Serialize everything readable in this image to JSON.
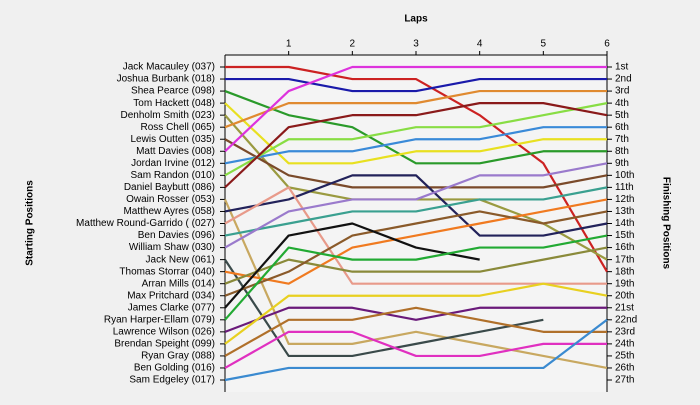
{
  "chart_data": {
    "type": "bump",
    "title": "Laps",
    "y_label": "Starting Positions",
    "y2_label": "Finishing Positions",
    "x": [
      0,
      1,
      2,
      3,
      4,
      5,
      6
    ],
    "xlim": [
      0,
      6
    ],
    "xticks": [
      1,
      2,
      3,
      4,
      5,
      6
    ],
    "ylim": [
      1,
      27
    ],
    "yticks": [
      {
        "value": 1,
        "label": "1st"
      },
      {
        "value": 2,
        "label": "2nd"
      },
      {
        "value": 3,
        "label": "3rd"
      },
      {
        "value": 4,
        "label": "4th"
      },
      {
        "value": 5,
        "label": "5th"
      },
      {
        "value": 6,
        "label": "6th"
      },
      {
        "value": 7,
        "label": "7th"
      },
      {
        "value": 8,
        "label": "8th"
      },
      {
        "value": 9,
        "label": "9th"
      },
      {
        "value": 10,
        "label": "10th"
      },
      {
        "value": 11,
        "label": "11th"
      },
      {
        "value": 12,
        "label": "12th"
      },
      {
        "value": 13,
        "label": "13th"
      },
      {
        "value": 14,
        "label": "14th"
      },
      {
        "value": 15,
        "label": "15th"
      },
      {
        "value": 16,
        "label": "16th"
      },
      {
        "value": 17,
        "label": "17th"
      },
      {
        "value": 18,
        "label": "18th"
      },
      {
        "value": 19,
        "label": "19th"
      },
      {
        "value": 20,
        "label": "20th"
      },
      {
        "value": 21,
        "label": "21st"
      },
      {
        "value": 22,
        "label": "22nd"
      },
      {
        "value": 23,
        "label": "23rd"
      },
      {
        "value": 24,
        "label": "24th"
      },
      {
        "value": 25,
        "label": "25th"
      },
      {
        "value": 26,
        "label": "26th"
      },
      {
        "value": 27,
        "label": "27th"
      }
    ],
    "series": [
      {
        "name": "Jack Macauley (037)",
        "color": "#cc2222",
        "values": [
          1,
          1,
          2,
          2,
          5,
          9,
          18
        ]
      },
      {
        "name": "Joshua Burbank (018)",
        "color": "#1a1aaa",
        "values": [
          2,
          2,
          3,
          3,
          2,
          2,
          2
        ]
      },
      {
        "name": "Shea Pearce (098)",
        "color": "#2a9a2a",
        "values": [
          3,
          5,
          6,
          9,
          9,
          8,
          8
        ]
      },
      {
        "name": "Tom Hackett (048)",
        "color": "#e8e020",
        "values": [
          4,
          9,
          9,
          8,
          8,
          7,
          7
        ]
      },
      {
        "name": "Denholm Smith (023)",
        "color": "#9a9a40",
        "values": [
          5,
          11,
          12,
          12,
          12,
          14,
          17
        ]
      },
      {
        "name": "Ross Chell (065)",
        "color": "#e08a30",
        "values": [
          6,
          4,
          4,
          4,
          3,
          3,
          3
        ]
      },
      {
        "name": "Lewis Outten (035)",
        "color": "#7a4a2a",
        "values": [
          7,
          10,
          11,
          11,
          11,
          11,
          10
        ]
      },
      {
        "name": "Matt Davies (008)",
        "color": "#dd33dd",
        "values": [
          8,
          3,
          1,
          1,
          1,
          1,
          1
        ]
      },
      {
        "name": "Jordan Irvine (012)",
        "color": "#3a8ad8",
        "values": [
          9,
          8,
          8,
          7,
          7,
          6,
          6
        ]
      },
      {
        "name": "Sam Randon (010)",
        "color": "#88dd44",
        "values": [
          10,
          7,
          7,
          6,
          6,
          5,
          4
        ]
      },
      {
        "name": "Daniel Baybutt (086)",
        "color": "#8a1a1a",
        "values": [
          11,
          6,
          5,
          5,
          4,
          4,
          5
        ]
      },
      {
        "name": "Owain Rosser (053)",
        "color": "#c8a860",
        "values": [
          12,
          24,
          24,
          23,
          24,
          25,
          26
        ]
      },
      {
        "name": "Matthew Ayres (058)",
        "color": "#22225a",
        "values": [
          13,
          12,
          10,
          10,
          15,
          15,
          14
        ]
      },
      {
        "name": "Matthew Round-Garrido ( (027)",
        "color": "#e89a8a",
        "values": [
          14,
          11,
          19,
          19,
          19,
          19,
          19
        ]
      },
      {
        "name": "Ben Davies (096)",
        "color": "#3aa090",
        "values": [
          15,
          14,
          13,
          13,
          12,
          12,
          11
        ]
      },
      {
        "name": "William Shaw (030)",
        "color": "#9a7acc",
        "values": [
          16,
          13,
          12,
          12,
          10,
          10,
          9
        ]
      },
      {
        "name": "Jack New (061)",
        "color": "#3a4a4a",
        "values": [
          17,
          25,
          25,
          24,
          23,
          22,
          null
        ]
      },
      {
        "name": "Thomas Storrar (040)",
        "color": "#f07a20",
        "values": [
          18,
          19,
          16,
          15,
          14,
          13,
          12
        ]
      },
      {
        "name": "Arran Mills (014)",
        "color": "#8a8a3a",
        "values": [
          19,
          17,
          18,
          18,
          18,
          17,
          16
        ]
      },
      {
        "name": "Max Pritchard (034)",
        "color": "#8a5a2a",
        "values": [
          20,
          18,
          15,
          14,
          13,
          14,
          13
        ]
      },
      {
        "name": "James Clarke (077)",
        "color": "#111111",
        "values": [
          21,
          15,
          14,
          16,
          17,
          null,
          null
        ]
      },
      {
        "name": "Ryan Harper-Ellam (079)",
        "color": "#22aa33",
        "values": [
          22,
          16,
          17,
          17,
          16,
          16,
          15
        ]
      },
      {
        "name": "Lawrence Wilson (026)",
        "color": "#6a1a7a",
        "values": [
          23,
          21,
          21,
          22,
          21,
          21,
          21
        ]
      },
      {
        "name": "Brendan Speight (099)",
        "color": "#e8d020",
        "values": [
          24,
          20,
          20,
          20,
          20,
          19,
          20
        ]
      },
      {
        "name": "Ryan Gray (088)",
        "color": "#b0702a",
        "values": [
          25,
          22,
          22,
          21,
          22,
          23,
          23
        ]
      },
      {
        "name": "Ben Golding (016)",
        "color": "#e030c0",
        "values": [
          26,
          23,
          23,
          25,
          25,
          24,
          24
        ]
      },
      {
        "name": "Sam Edgeley (017)",
        "color": "#3a8ad0",
        "values": [
          27,
          26,
          26,
          26,
          26,
          26,
          22
        ]
      }
    ]
  }
}
